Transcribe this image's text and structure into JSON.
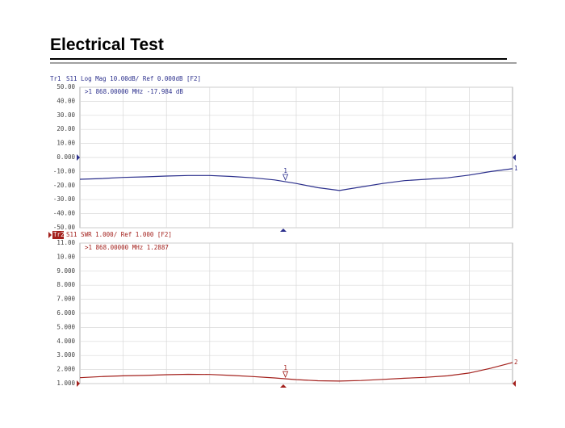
{
  "header": {
    "title": "Electrical Test"
  },
  "chart_data": [
    {
      "type": "line",
      "trace": "Tr1",
      "header": "S11 Log Mag 10.00dB/ Ref 0.000dB [F2]",
      "annotation": ">1  868.00000 MHz -17.984 dB",
      "marker_label": "1",
      "end_label": "1",
      "ylim": [
        -50,
        50
      ],
      "yticks": [
        {
          "value": 50,
          "label": "50.00"
        },
        {
          "value": 40,
          "label": "40.00"
        },
        {
          "value": 30,
          "label": "30.00"
        },
        {
          "value": 20,
          "label": "20.00"
        },
        {
          "value": 10,
          "label": "10.00"
        },
        {
          "value": 0,
          "label": "0.000"
        },
        {
          "value": -10,
          "label": "-10.00"
        },
        {
          "value": -20,
          "label": "-20.00"
        },
        {
          "value": -30,
          "label": "-30.00"
        },
        {
          "value": -40,
          "label": "-40.00"
        },
        {
          "value": -50,
          "label": "-50.00"
        }
      ],
      "grid": true,
      "color": "#2b2f8c",
      "values": [
        -15.5,
        -15,
        -14.2,
        -13.8,
        -13.2,
        -12.8,
        -12.8,
        -13.5,
        -14.5,
        -16,
        -18.5,
        -21.5,
        -23.5,
        -21,
        -18.5,
        -16.5,
        -15.5,
        -14.5,
        -12.5,
        -10,
        -8
      ]
    },
    {
      "type": "line",
      "trace": "Tr2",
      "header": "S11 SWR 1.000/ Ref 1.000 [F2]",
      "annotation": ">1  868.00000 MHz  1.2887",
      "marker_label": "1",
      "end_label": "2",
      "ylim": [
        1,
        11
      ],
      "yticks": [
        {
          "value": 11,
          "label": "11.00"
        },
        {
          "value": 10,
          "label": "10.00"
        },
        {
          "value": 9,
          "label": "9.000"
        },
        {
          "value": 8,
          "label": "8.000"
        },
        {
          "value": 7,
          "label": "7.000"
        },
        {
          "value": 6,
          "label": "6.000"
        },
        {
          "value": 5,
          "label": "5.000"
        },
        {
          "value": 4,
          "label": "4.000"
        },
        {
          "value": 3,
          "label": "3.000"
        },
        {
          "value": 2,
          "label": "2.000"
        },
        {
          "value": 1,
          "label": "1.000"
        }
      ],
      "grid": true,
      "color": "#a3201c",
      "values": [
        1.42,
        1.5,
        1.55,
        1.58,
        1.63,
        1.66,
        1.65,
        1.58,
        1.5,
        1.4,
        1.28,
        1.2,
        1.18,
        1.22,
        1.3,
        1.38,
        1.45,
        1.55,
        1.75,
        2.1,
        2.5
      ]
    }
  ]
}
